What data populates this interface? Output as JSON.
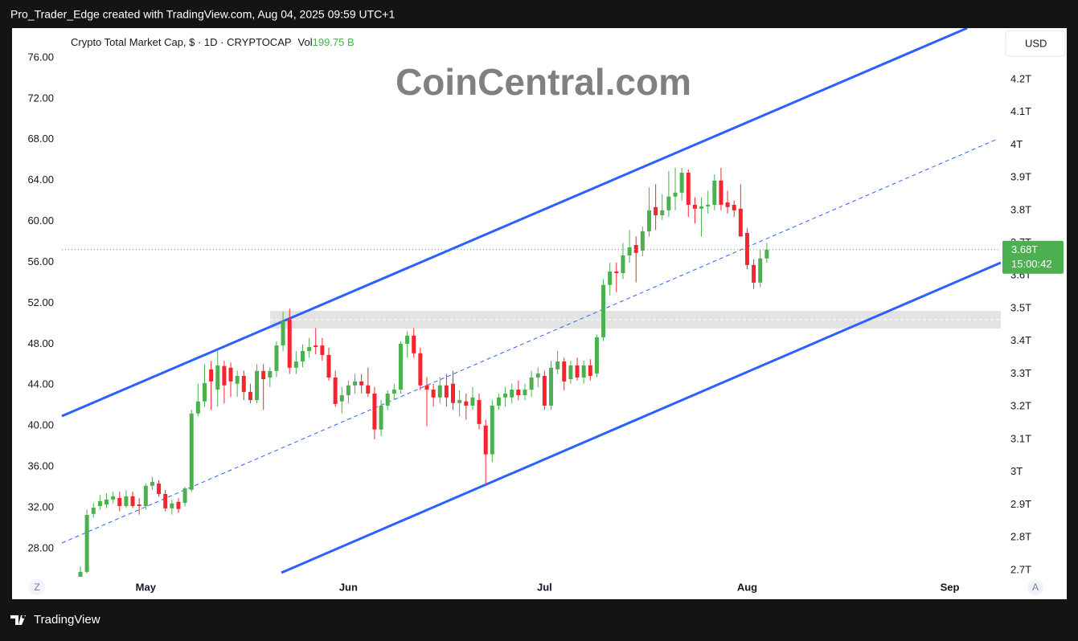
{
  "header": "Pro_Trader_Edge created with TradingView.com, Aug 04, 2025 09:59 UTC+1",
  "watermark": "CoinCentral.com",
  "currency_button": "USD",
  "zoom_button": "Z",
  "auto_button": "A",
  "footer_logo": "TradingView",
  "chart_data": {
    "type": "candlestick",
    "title": "Crypto Total Market Cap, $ · 1D · CRYPTOCAP",
    "volume_label": "Vol",
    "volume": "199.75 B",
    "up_color": "#4caf50",
    "down_color": "#f7232d",
    "open": [
      2.68,
      2.695,
      2.872,
      2.896,
      2.901,
      2.916,
      2.921,
      2.896,
      2.926,
      2.901,
      2.896,
      2.958,
      2.965,
      2.933,
      2.889,
      2.909,
      2.906,
      2.946,
      3.179,
      3.216,
      3.314,
      3.252,
      3.324,
      3.319,
      3.27,
      3.294,
      3.245,
      3.22,
      3.309,
      3.289,
      3.309,
      3.387,
      3.466,
      3.319,
      3.338,
      3.37,
      3.387,
      3.387,
      3.358,
      3.289,
      3.216,
      3.235,
      3.265,
      3.277,
      3.265,
      3.24,
      3.13,
      3.203,
      3.24,
      3.252,
      3.392,
      3.417,
      3.363,
      3.265,
      3.252,
      3.228,
      3.265,
      3.27,
      3.211,
      3.216,
      3.203,
      3.22,
      3.142,
      3.054,
      3.203,
      3.228,
      3.228,
      3.252,
      3.235,
      3.252,
      3.289,
      3.294,
      3.203,
      3.314,
      3.338,
      3.284,
      3.326,
      3.289,
      3.326,
      3.301,
      3.412,
      3.572,
      3.613,
      3.608,
      3.662,
      3.694,
      3.677,
      3.736,
      3.81,
      3.785,
      3.8,
      3.842,
      3.854,
      3.915,
      3.817,
      3.805,
      3.812,
      3.817,
      3.891,
      3.824,
      3.817,
      3.805,
      3.731,
      3.633,
      3.579,
      3.653
    ],
    "high": [
      2.712,
      2.885,
      2.905,
      2.93,
      2.935,
      2.94,
      2.94,
      2.945,
      2.94,
      2.92,
      2.965,
      2.985,
      2.975,
      2.945,
      2.915,
      2.92,
      2.955,
      3.19,
      3.27,
      3.33,
      3.34,
      3.37,
      3.34,
      3.335,
      3.31,
      3.31,
      3.27,
      3.33,
      3.33,
      3.32,
      3.4,
      3.49,
      3.5,
      3.37,
      3.39,
      3.41,
      3.44,
      3.41,
      3.38,
      3.31,
      3.26,
      3.28,
      3.3,
      3.3,
      3.32,
      3.26,
      3.22,
      3.25,
      3.27,
      3.4,
      3.43,
      3.44,
      3.38,
      3.29,
      3.27,
      3.29,
      3.3,
      3.31,
      3.25,
      3.24,
      3.26,
      3.24,
      3.16,
      3.22,
      3.24,
      3.26,
      3.27,
      3.28,
      3.27,
      3.31,
      3.32,
      3.31,
      3.34,
      3.37,
      3.35,
      3.34,
      3.35,
      3.34,
      3.345,
      3.42,
      3.59,
      3.64,
      3.64,
      3.7,
      3.74,
      3.72,
      3.75,
      3.87,
      3.88,
      3.85,
      3.92,
      3.93,
      3.93,
      3.925,
      3.84,
      3.84,
      3.86,
      3.91,
      3.93,
      3.86,
      3.83,
      3.88,
      3.745,
      3.65,
      3.68,
      3.7
    ],
    "low": [
      2.68,
      2.69,
      2.86,
      2.885,
      2.89,
      2.905,
      2.88,
      2.89,
      2.89,
      2.87,
      2.885,
      2.945,
      2.925,
      2.88,
      2.87,
      2.875,
      2.895,
      2.94,
      3.17,
      3.2,
      3.19,
      3.2,
      3.21,
      3.23,
      3.23,
      3.22,
      3.21,
      3.21,
      3.19,
      3.26,
      3.29,
      3.37,
      3.3,
      3.3,
      3.32,
      3.35,
      3.36,
      3.34,
      3.28,
      3.2,
      3.18,
      3.21,
      3.24,
      3.24,
      3.23,
      3.1,
      3.11,
      3.19,
      3.22,
      3.24,
      3.35,
      3.35,
      3.25,
      3.14,
      3.2,
      3.21,
      3.2,
      3.19,
      3.17,
      3.16,
      3.19,
      3.13,
      2.963,
      3.03,
      3.19,
      3.2,
      3.21,
      3.22,
      3.22,
      3.23,
      3.26,
      3.19,
      3.19,
      3.3,
      3.25,
      3.27,
      3.28,
      3.27,
      3.28,
      3.29,
      3.4,
      3.54,
      3.55,
      3.59,
      3.64,
      3.58,
      3.66,
      3.72,
      3.74,
      3.77,
      3.78,
      3.8,
      3.83,
      3.78,
      3.76,
      3.72,
      3.79,
      3.8,
      3.8,
      3.79,
      3.78,
      3.72,
      3.62,
      3.56,
      3.565,
      3.64
    ],
    "close": [
      2.695,
      2.869,
      2.891,
      2.911,
      2.916,
      2.926,
      2.896,
      2.926,
      2.896,
      2.896,
      2.958,
      2.97,
      2.933,
      2.889,
      2.904,
      2.887,
      2.95,
      3.179,
      3.216,
      3.272,
      3.277,
      3.326,
      3.265,
      3.277,
      3.294,
      3.245,
      3.22,
      3.309,
      3.284,
      3.309,
      3.387,
      3.461,
      3.319,
      3.338,
      3.37,
      3.382,
      3.382,
      3.358,
      3.289,
      3.208,
      3.235,
      3.265,
      3.277,
      3.265,
      3.24,
      3.13,
      3.203,
      3.24,
      3.252,
      3.392,
      3.417,
      3.363,
      3.265,
      3.252,
      3.228,
      3.265,
      3.228,
      3.211,
      3.22,
      3.203,
      3.228,
      3.147,
      3.054,
      3.203,
      3.228,
      3.24,
      3.252,
      3.235,
      3.252,
      3.289,
      3.301,
      3.203,
      3.319,
      3.338,
      3.277,
      3.326,
      3.289,
      3.326,
      3.294,
      3.412,
      3.572,
      3.613,
      3.608,
      3.662,
      3.687,
      3.67,
      3.736,
      3.8,
      3.785,
      3.8,
      3.842,
      3.854,
      3.915,
      3.817,
      3.805,
      3.812,
      3.817,
      3.891,
      3.817,
      3.81,
      3.8,
      3.72,
      3.633,
      3.579,
      3.653,
      3.68
    ],
    "xlim": [
      -10.45,
      140.8
    ],
    "xticks": [
      {
        "value": 10,
        "label": "May"
      },
      {
        "value": 41,
        "label": "Jun"
      },
      {
        "value": 71,
        "label": "Jul"
      },
      {
        "value": 102,
        "label": "Aug"
      },
      {
        "value": 133,
        "label": "Sep"
      }
    ],
    "ylim": [
      2.68,
      4.357
    ],
    "yticks": [
      {
        "value": 2.7,
        "label": "2.7T"
      },
      {
        "value": 2.8,
        "label": "2.8T"
      },
      {
        "value": 2.9,
        "label": "2.9T"
      },
      {
        "value": 3,
        "label": "3T"
      },
      {
        "value": 3.1,
        "label": "3.1T"
      },
      {
        "value": 3.2,
        "label": "3.2T"
      },
      {
        "value": 3.3,
        "label": "3.3T"
      },
      {
        "value": 3.4,
        "label": "3.4T"
      },
      {
        "value": 3.5,
        "label": "3.5T"
      },
      {
        "value": 3.6,
        "label": "3.6T"
      },
      {
        "value": 3.7,
        "label": "3.7T"
      },
      {
        "value": 3.8,
        "label": "3.8T"
      },
      {
        "value": 3.9,
        "label": "3.9T"
      },
      {
        "value": 4,
        "label": "4T"
      },
      {
        "value": 4.1,
        "label": "4.1T"
      },
      {
        "value": 4.2,
        "label": "4.2T"
      }
    ],
    "y2lim": [
      25.25,
      78.9
    ],
    "y2ticks": [
      {
        "value": 28,
        "label": "28.00"
      },
      {
        "value": 32,
        "label": "32.00"
      },
      {
        "value": 36,
        "label": "36.00"
      },
      {
        "value": 40,
        "label": "40.00"
      },
      {
        "value": 44,
        "label": "44.00"
      },
      {
        "value": 48,
        "label": "48.00"
      },
      {
        "value": 52,
        "label": "52.00"
      },
      {
        "value": 56,
        "label": "56.00"
      },
      {
        "value": 60,
        "label": "60.00"
      },
      {
        "value": 64,
        "label": "64.00"
      },
      {
        "value": 68,
        "label": "68.00"
      },
      {
        "value": 72,
        "label": "72.00"
      },
      {
        "value": 76,
        "label": "76.00"
      }
    ],
    "last_price": {
      "value": 3.68,
      "label": "3.68T"
    },
    "countdown": "15:00:42",
    "last_price_color": "#4caf50"
  }
}
